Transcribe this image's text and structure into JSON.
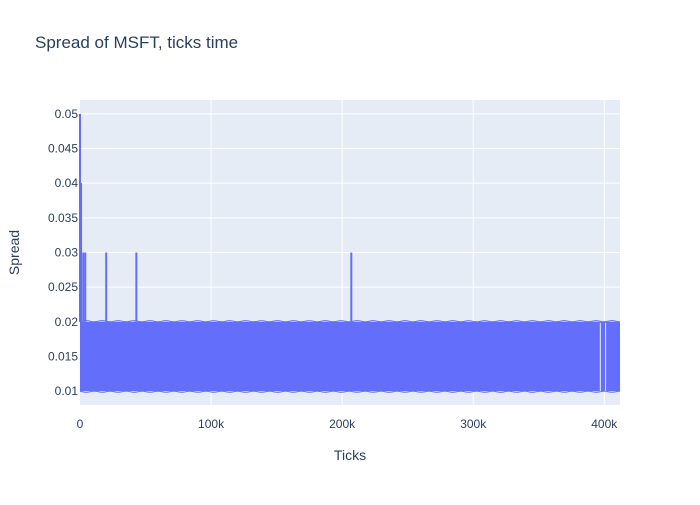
{
  "chart_data": {
    "type": "line",
    "title": "Spread of MSFT, ticks time",
    "xlabel": "Ticks",
    "ylabel": "Spread",
    "xlim": [
      0,
      412000
    ],
    "ylim": [
      0.008,
      0.052
    ],
    "x_ticks": [
      0,
      100000,
      200000,
      300000,
      400000
    ],
    "x_tick_labels": [
      "0",
      "100k",
      "200k",
      "300k",
      "400k"
    ],
    "y_ticks": [
      0.01,
      0.015,
      0.02,
      0.025,
      0.03,
      0.035,
      0.04,
      0.045,
      0.05
    ],
    "y_tick_labels": [
      "0.01",
      "0.015",
      "0.02",
      "0.025",
      "0.03",
      "0.035",
      "0.04",
      "0.045",
      "0.05"
    ],
    "grid": true,
    "legend": false,
    "series": [
      {
        "color": "#636efa",
        "band": {
          "x_range": [
            0,
            412000
          ],
          "low": 0.01,
          "high": 0.02
        },
        "spikes": [
          {
            "x": 0,
            "y": 0.05
          },
          {
            "x": 800,
            "y": 0.04
          },
          {
            "x": 2500,
            "y": 0.03
          },
          {
            "x": 4000,
            "y": 0.03
          },
          {
            "x": 20000,
            "y": 0.03
          },
          {
            "x": 43000,
            "y": 0.03
          },
          {
            "x": 207000,
            "y": 0.03
          }
        ],
        "dips": [
          {
            "x": 397000,
            "y": 0.01
          },
          {
            "x": 401000,
            "y": 0.01
          }
        ]
      }
    ]
  }
}
